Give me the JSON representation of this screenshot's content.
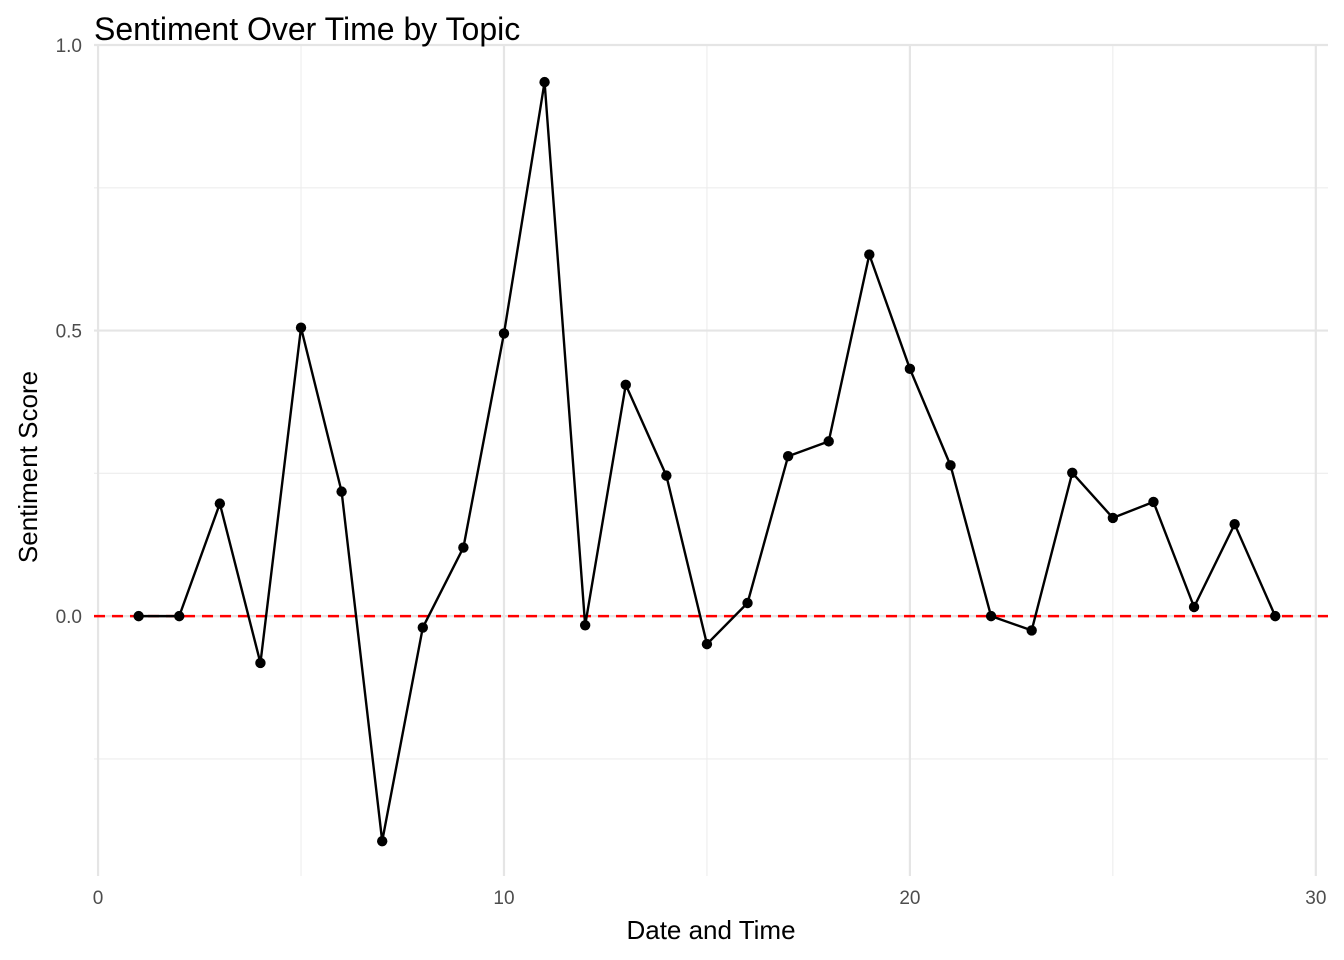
{
  "chart_data": {
    "type": "line",
    "title": "Sentiment Over Time by Topic",
    "xlabel": "Date and Time",
    "ylabel": "Sentiment Score",
    "xlim": [
      -0.1,
      30.3
    ],
    "ylim": [
      -0.455,
      1.0
    ],
    "x_ticks": [
      0,
      10,
      20,
      30
    ],
    "x_tick_labels": [
      "0",
      "10",
      "20",
      "30"
    ],
    "y_ticks": [
      0.0,
      0.5,
      1.0
    ],
    "y_tick_labels": [
      "0.0",
      "0.5",
      "1.0"
    ],
    "grid": true,
    "reference_line": {
      "y": 0,
      "color": "#ff0000",
      "style": "dashed"
    },
    "series": [
      {
        "color": "#000000",
        "x": [
          1,
          2,
          3,
          4,
          5,
          6,
          7,
          8,
          9,
          10,
          11,
          12,
          13,
          14,
          15,
          16,
          17,
          18,
          19,
          20,
          21,
          22,
          23,
          24,
          25,
          26,
          27,
          28,
          29
        ],
        "values": [
          0.0,
          0.0,
          0.197,
          -0.082,
          0.505,
          0.218,
          -0.394,
          -0.02,
          0.12,
          0.495,
          0.935,
          -0.016,
          0.405,
          0.246,
          -0.049,
          0.023,
          0.28,
          0.306,
          0.633,
          0.433,
          0.264,
          0.0,
          -0.025,
          0.251,
          0.172,
          0.2,
          0.016,
          0.161,
          0.0
        ]
      }
    ]
  }
}
